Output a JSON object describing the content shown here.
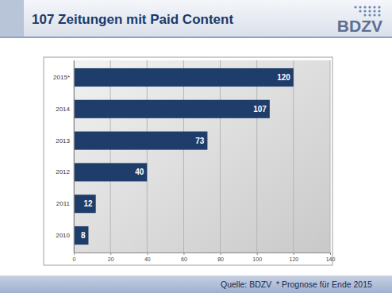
{
  "chart_data": {
    "type": "bar",
    "orientation": "horizontal",
    "title": "107 Zeitungen mit Paid Content",
    "annotations": [
      "BDZV",
      "Quelle: BDZV",
      "* Prognose für Ende 2015"
    ],
    "categories": [
      "2015*",
      "2014",
      "2013",
      "2012",
      "2011",
      "2010"
    ],
    "values": [
      120,
      107,
      73,
      40,
      12,
      8
    ],
    "color": "#1f3d6b",
    "xlim": [
      0,
      140
    ],
    "xticks": [
      0,
      20,
      40,
      60,
      80,
      100,
      120,
      140
    ],
    "grid": true,
    "data_labels": true
  }
}
